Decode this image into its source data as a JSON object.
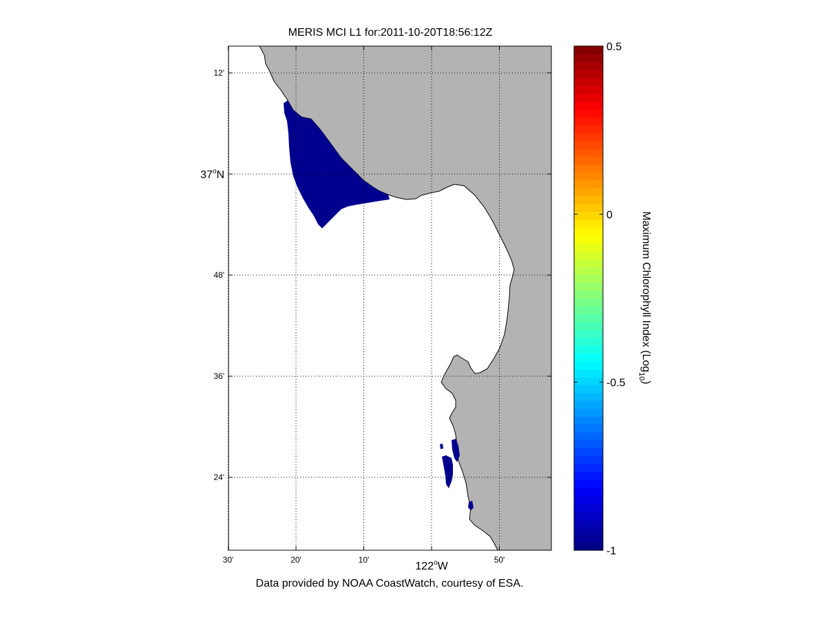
{
  "title": "MERIS MCI L1 for:2011-10-20T18:56:12Z",
  "credit": "Data provided by NOAA CoastWatch, courtesy of ESA.",
  "map": {
    "lat_ticks": [
      {
        "value": 37.2,
        "label": "12'",
        "major": false
      },
      {
        "value": 37.0,
        "label": "37",
        "sup": "o",
        "suffix": "N",
        "major": true
      },
      {
        "value": 36.8,
        "label": "48'",
        "major": false
      },
      {
        "value": 36.6,
        "label": "36'",
        "major": false
      },
      {
        "value": 36.4,
        "label": "24'",
        "major": false
      }
    ],
    "lon_ticks": [
      {
        "value": -122.5,
        "label": "30'"
      },
      {
        "value": -122.3333,
        "label": "20'"
      },
      {
        "value": -122.1667,
        "label": "10'"
      },
      {
        "value": -122.0,
        "label": ""
      },
      {
        "value": -121.8333,
        "label": "50'"
      }
    ],
    "lon_axis_label": {
      "label": "122",
      "sup": "o",
      "suffix": "W"
    },
    "land_color": "#b3b3b3",
    "water_color": "#ffffff",
    "bloom_color": "#00008f",
    "grid": true
  },
  "colorbar": {
    "label": "Maximum Chlorophyll Index (Log",
    "label_sub": "10",
    "label_end": ")",
    "range": [
      -1,
      0.5
    ],
    "ticks": [
      {
        "value": 0.5,
        "label": "0.5"
      },
      {
        "value": 0,
        "label": "0"
      },
      {
        "value": -0.5,
        "label": "-0.5"
      },
      {
        "value": -1,
        "label": "-1"
      }
    ],
    "colormap": "jet",
    "levels": 64
  }
}
